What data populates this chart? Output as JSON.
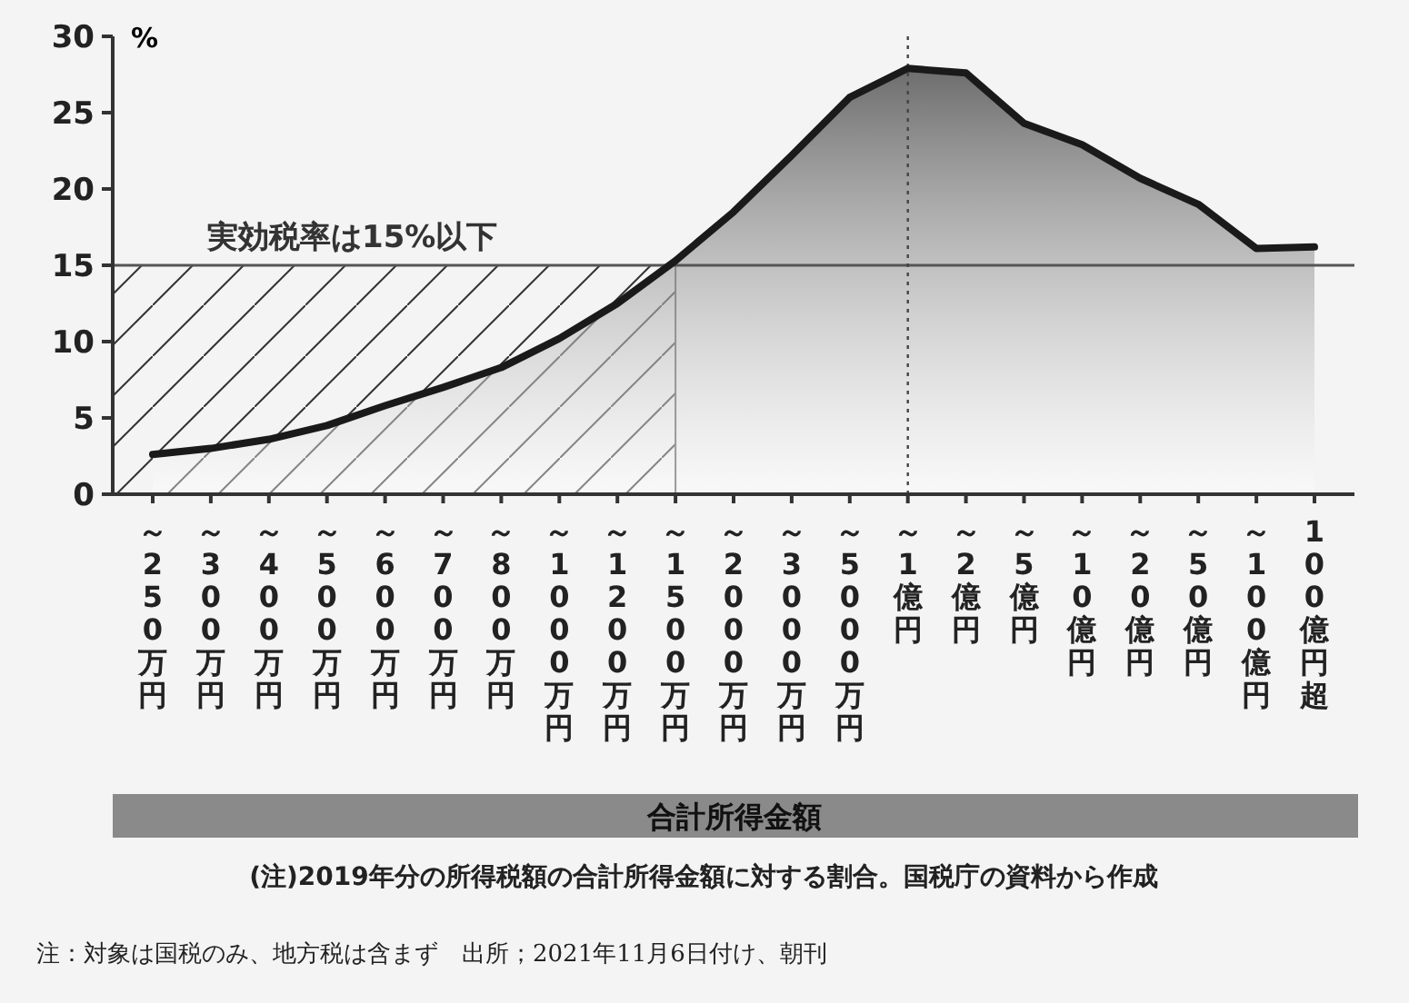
{
  "chart_data": {
    "type": "area",
    "ylabel": "%",
    "xlabel": "合計所得金額",
    "categories": [
      "～250万円",
      "～300万円",
      "～400万円",
      "～500万円",
      "～600万円",
      "～700万円",
      "～800万円",
      "～1000万円",
      "～1200万円",
      "～1500万円",
      "～2000万円",
      "～3000万円",
      "～5000万円",
      "～1億円",
      "～2億円",
      "～5億円",
      "～10億円",
      "～20億円",
      "～50億円",
      "～100億円",
      "100億円超"
    ],
    "series": [
      {
        "color": "#1a1a1a",
        "values": [
          2.6,
          3.0,
          3.6,
          4.5,
          5.8,
          7.0,
          8.3,
          10.2,
          12.5,
          15.3,
          18.5,
          22.2,
          26.0,
          27.9,
          27.6,
          24.3,
          22.9,
          20.7,
          19.0,
          16.1,
          16.2
        ]
      }
    ],
    "ylim": [
      0,
      30
    ],
    "yticks": [
      0,
      5,
      10,
      15,
      20,
      25,
      30
    ],
    "ref_lines": [
      {
        "axis": "y",
        "value": 15,
        "label": "実効税率は15%以下",
        "color": "#555555",
        "line_style": "solid"
      },
      {
        "axis": "x",
        "value": "～1億円",
        "label": null,
        "color": "#444444",
        "line_style": "dotted"
      }
    ],
    "annotations": [
      "(注)2019年分の所得税額の合計所得金額に対する割合。国税庁の資料から作成",
      "注：対象は国税のみ、地方税は含まず　出所；2021年11月6日付け、朝刊"
    ],
    "grid": false
  }
}
